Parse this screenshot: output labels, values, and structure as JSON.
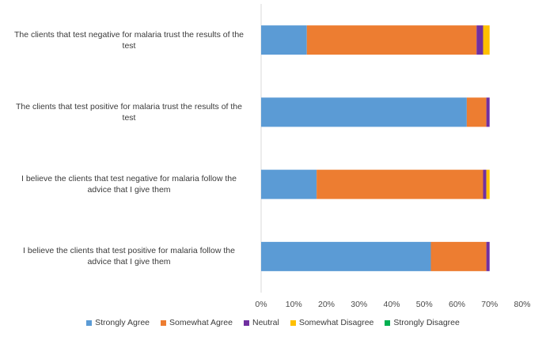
{
  "chart_data": {
    "type": "bar",
    "orientation": "horizontal",
    "stacked": true,
    "categories": [
      [
        "The clients that test negative for malaria trust the results of the",
        "test"
      ],
      [
        "The clients that test positive for malaria trust the results of the",
        "test"
      ],
      [
        "I believe the clients that test negative for malaria follow the",
        "advice that I give them"
      ],
      [
        "I believe the clients that test positive for malaria follow the",
        "advice that I give them"
      ]
    ],
    "series": [
      {
        "name": "Strongly Agree",
        "color": "#5b9bd5",
        "values": [
          14,
          63,
          17,
          52
        ]
      },
      {
        "name": "Somewhat Agree",
        "color": "#ed7d31",
        "values": [
          52,
          6,
          51,
          17
        ]
      },
      {
        "name": "Neutral",
        "color": "#7030a0",
        "values": [
          2,
          1,
          1,
          1
        ]
      },
      {
        "name": "Somewhat Disagree",
        "color": "#ffc000",
        "values": [
          2,
          0,
          1,
          0
        ]
      },
      {
        "name": "Strongly Disagree",
        "color": "#00b050",
        "values": [
          0,
          0,
          0,
          0
        ]
      }
    ],
    "xlim": [
      0,
      80
    ],
    "xticks": [
      "0%",
      "10%",
      "20%",
      "30%",
      "40%",
      "50%",
      "60%",
      "70%",
      "80%"
    ],
    "grid": false,
    "legend_position": "bottom"
  }
}
